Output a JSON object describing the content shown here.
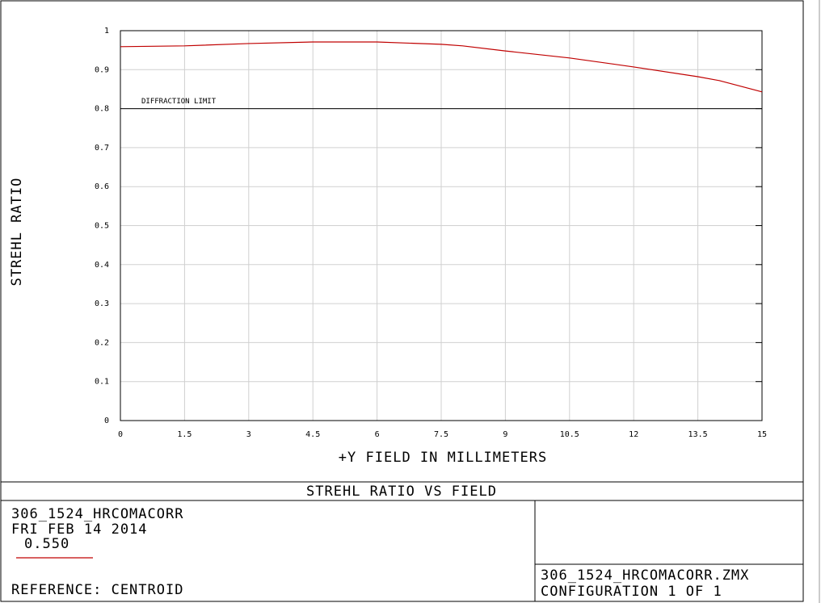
{
  "chart_data": {
    "type": "line",
    "title": "STREHL RATIO VS FIELD",
    "xlabel": "+Y FIELD IN MILLIMETERS",
    "ylabel": "STREHL RATIO",
    "x": [
      0,
      1.5,
      3,
      4.5,
      6,
      7.5,
      8,
      9,
      10.5,
      12,
      13.5,
      14,
      15
    ],
    "series": [
      {
        "name": "0.550",
        "color": "#c00000",
        "values": [
          0.959,
          0.961,
          0.967,
          0.971,
          0.971,
          0.965,
          0.961,
          0.948,
          0.93,
          0.907,
          0.882,
          0.872,
          0.843
        ]
      }
    ],
    "reference_line": {
      "value": 0.8,
      "label": "DIFFRACTION LIMIT"
    },
    "xlim": [
      0,
      15
    ],
    "ylim": [
      0,
      1
    ],
    "xticks": [
      0,
      1.5,
      3,
      4.5,
      6,
      7.5,
      9,
      10.5,
      12,
      13.5,
      15
    ],
    "yticks": [
      0,
      0.1,
      0.2,
      0.3,
      0.4,
      0.5,
      0.6,
      0.7,
      0.8,
      0.9,
      1
    ],
    "grid": true,
    "info": {
      "lens_name": "306_1524_HRCOMACORR",
      "date": "FRI FEB 14 2014",
      "reference": "REFERENCE: CENTROID",
      "file": "306_1524_HRCOMACORR.ZMX",
      "configuration": "CONFIGURATION 1 OF 1"
    }
  }
}
